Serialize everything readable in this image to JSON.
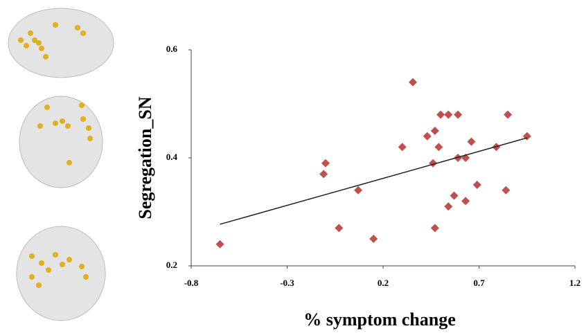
{
  "chart_data": {
    "type": "scatter",
    "x_label": "% symptom change",
    "y_label": "Segregation_SN",
    "xlim": [
      -0.8,
      1.2
    ],
    "xticks": [
      -0.8,
      -0.3,
      0.2,
      0.7,
      1.2
    ],
    "ylim": [
      0.2,
      0.6
    ],
    "yticks": [
      0.2,
      0.4,
      0.6
    ],
    "color": "#c0504d",
    "x": [
      -0.65,
      -0.11,
      -0.1,
      -0.03,
      0.07,
      0.15,
      0.3,
      0.355,
      0.43,
      0.46,
      0.47,
      0.47,
      0.49,
      0.5,
      0.54,
      0.59,
      0.54,
      0.57,
      0.59,
      0.63,
      0.63,
      0.66,
      0.69,
      0.79,
      0.84,
      0.85,
      0.95
    ],
    "values": [
      0.24,
      0.37,
      0.39,
      0.27,
      0.34,
      0.25,
      0.42,
      0.54,
      0.44,
      0.39,
      0.45,
      0.27,
      0.42,
      0.48,
      0.48,
      0.48,
      0.31,
      0.33,
      0.4,
      0.4,
      0.32,
      0.43,
      0.35,
      0.42,
      0.34,
      0.48,
      0.44
    ],
    "trend": {
      "x": [
        -0.65,
        0.95
      ],
      "values": [
        0.277,
        0.437
      ],
      "color": "#222222"
    }
  }
}
